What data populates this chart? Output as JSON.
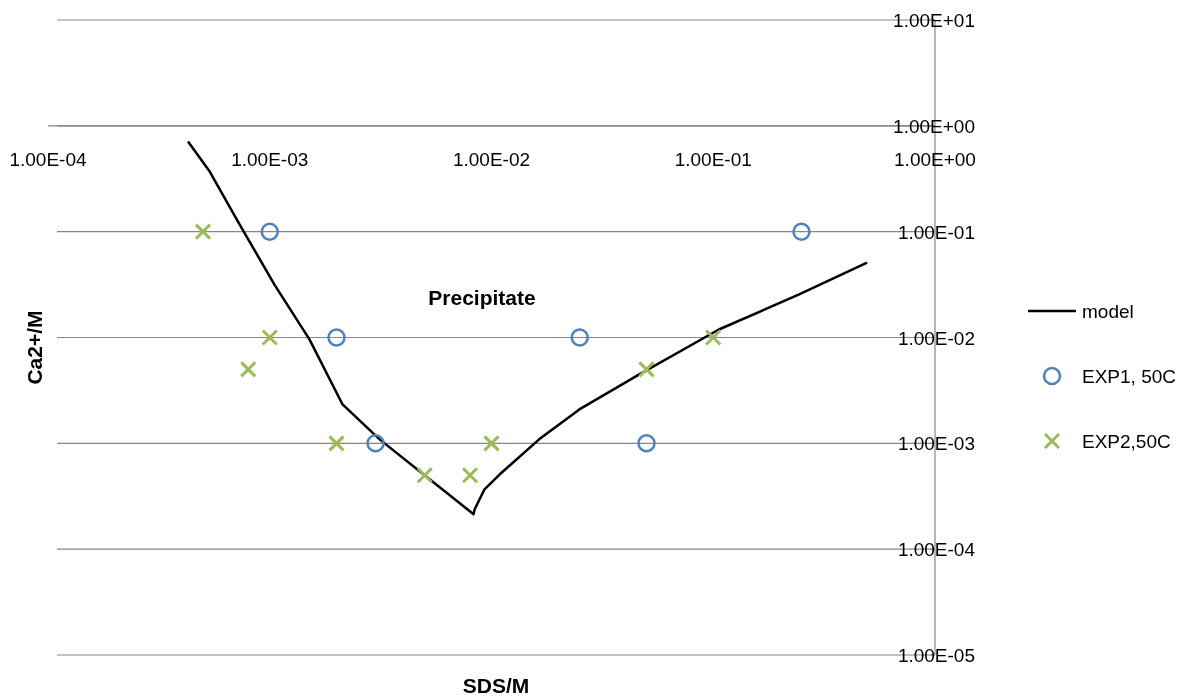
{
  "chart_data": {
    "type": "scatter",
    "xlabel": "SDS/M",
    "ylabel": "Ca2+/M",
    "log": "xy",
    "grid": "y",
    "legend": "right",
    "xlim": [
      0.0001,
      1
    ],
    "xticks": [
      {
        "value": 0.0001,
        "label": "1.00E-04"
      },
      {
        "value": 0.001,
        "label": "1.00E-03"
      },
      {
        "value": 0.01,
        "label": "1.00E-02"
      },
      {
        "value": 0.1,
        "label": "1.00E-01"
      },
      {
        "value": 1,
        "label": "1.00E+00"
      }
    ],
    "ylim": [
      1e-05,
      10
    ],
    "yticks": [
      {
        "value": 1e-05,
        "label": "1.00E-05"
      },
      {
        "value": 0.0001,
        "label": "1.00E-04"
      },
      {
        "value": 0.001,
        "label": "1.00E-03"
      },
      {
        "value": 0.01,
        "label": "1.00E-02"
      },
      {
        "value": 0.1,
        "label": "1.00E-01"
      },
      {
        "value": 1,
        "label": "1.00E+00"
      },
      {
        "value": 10,
        "label": "1.00E+01"
      }
    ],
    "annotations": [
      "Precipitate"
    ],
    "series": [
      {
        "name": "model",
        "type": "line",
        "color": "#000000",
        "marker": "none",
        "line_style": "solid",
        "x": [
          0.000428,
          0.000537,
          0.000733,
          0.00105,
          0.00151,
          0.00213,
          0.00313,
          0.00526,
          0.0083,
          0.0084,
          0.0093,
          0.0109,
          0.0164,
          0.0249,
          0.0464,
          0.106,
          0.244,
          0.494
        ],
        "values": [
          0.71,
          0.368,
          0.116,
          0.0316,
          0.0096,
          0.00233,
          0.00109,
          0.000457,
          0.000214,
          0.000238,
          0.000368,
          0.00051,
          0.00109,
          0.00209,
          0.00448,
          0.0119,
          0.0255,
          0.051
        ]
      },
      {
        "name": "EXP1, 50C",
        "color": "#4f81bd",
        "marker": "circle",
        "x": [
          0.001,
          0.002,
          0.003,
          0.025,
          0.05,
          0.25
        ],
        "values": [
          0.1,
          0.01,
          0.001,
          0.01,
          0.001,
          0.1
        ]
      },
      {
        "name": "EXP2,50C",
        "color": "#9bbb59",
        "marker": "cross",
        "x": [
          0.0005,
          0.001,
          0.0008,
          0.002,
          0.005,
          0.008,
          0.01,
          0.05,
          0.1
        ],
        "values": [
          0.1,
          0.01,
          0.005,
          0.001,
          0.0005,
          0.0005,
          0.001,
          0.005,
          0.01
        ]
      }
    ]
  }
}
